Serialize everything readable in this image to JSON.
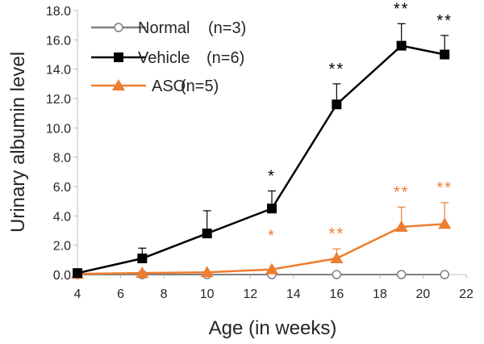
{
  "chart_data": {
    "type": "line",
    "title": "",
    "xlabel": "Age (in weeks)",
    "ylabel": "Urinary albumin level",
    "xlim": [
      4,
      22
    ],
    "ylim": [
      0,
      18
    ],
    "xticks": [
      "4",
      "6",
      "8",
      "10",
      "12",
      "14",
      "16",
      "18",
      "20",
      "22"
    ],
    "yticks": [
      "0.0",
      "2.0",
      "4.0",
      "6.0",
      "8.0",
      "10.0",
      "12.0",
      "14.0",
      "16.0",
      "18.0"
    ],
    "grid": false,
    "legend_position": "top-left",
    "series": [
      {
        "name": "Normal",
        "legend_label": "Normal",
        "n_label": "(n=3)",
        "color": "#808080",
        "marker": "open-circle",
        "x": [
          4,
          7,
          10,
          13,
          16,
          19,
          21
        ],
        "values": [
          0.0,
          0.0,
          0.0,
          0.0,
          0.0,
          0.0,
          0.0
        ],
        "error": [
          0,
          0,
          0,
          0,
          0,
          0,
          0
        ],
        "significance": [
          "",
          "",
          "",
          "",
          "",
          "",
          ""
        ]
      },
      {
        "name": "Vehicle",
        "legend_label": "Vehicle",
        "n_label": "(n=6)",
        "color": "#000000",
        "marker": "square",
        "x": [
          4,
          7,
          10,
          13,
          16,
          19,
          21
        ],
        "values": [
          0.1,
          1.1,
          2.8,
          4.5,
          11.6,
          15.6,
          15.0
        ],
        "error": [
          0.1,
          0.7,
          1.55,
          1.2,
          1.4,
          1.5,
          1.3
        ],
        "significance": [
          "",
          "",
          "",
          "*",
          "**",
          "**",
          "**"
        ]
      },
      {
        "name": "ASO",
        "legend_label": "ASO",
        "n_label": "(n=5)",
        "color": "#ED7D31",
        "marker": "triangle",
        "x": [
          4,
          7,
          10,
          13,
          16,
          19,
          21
        ],
        "values": [
          0.05,
          0.1,
          0.15,
          0.35,
          1.1,
          3.25,
          3.45
        ],
        "error": [
          0,
          0,
          0,
          0,
          0.65,
          1.35,
          1.45
        ],
        "significance": [
          "",
          "",
          "",
          "*",
          "**",
          "**",
          "**"
        ]
      }
    ]
  }
}
